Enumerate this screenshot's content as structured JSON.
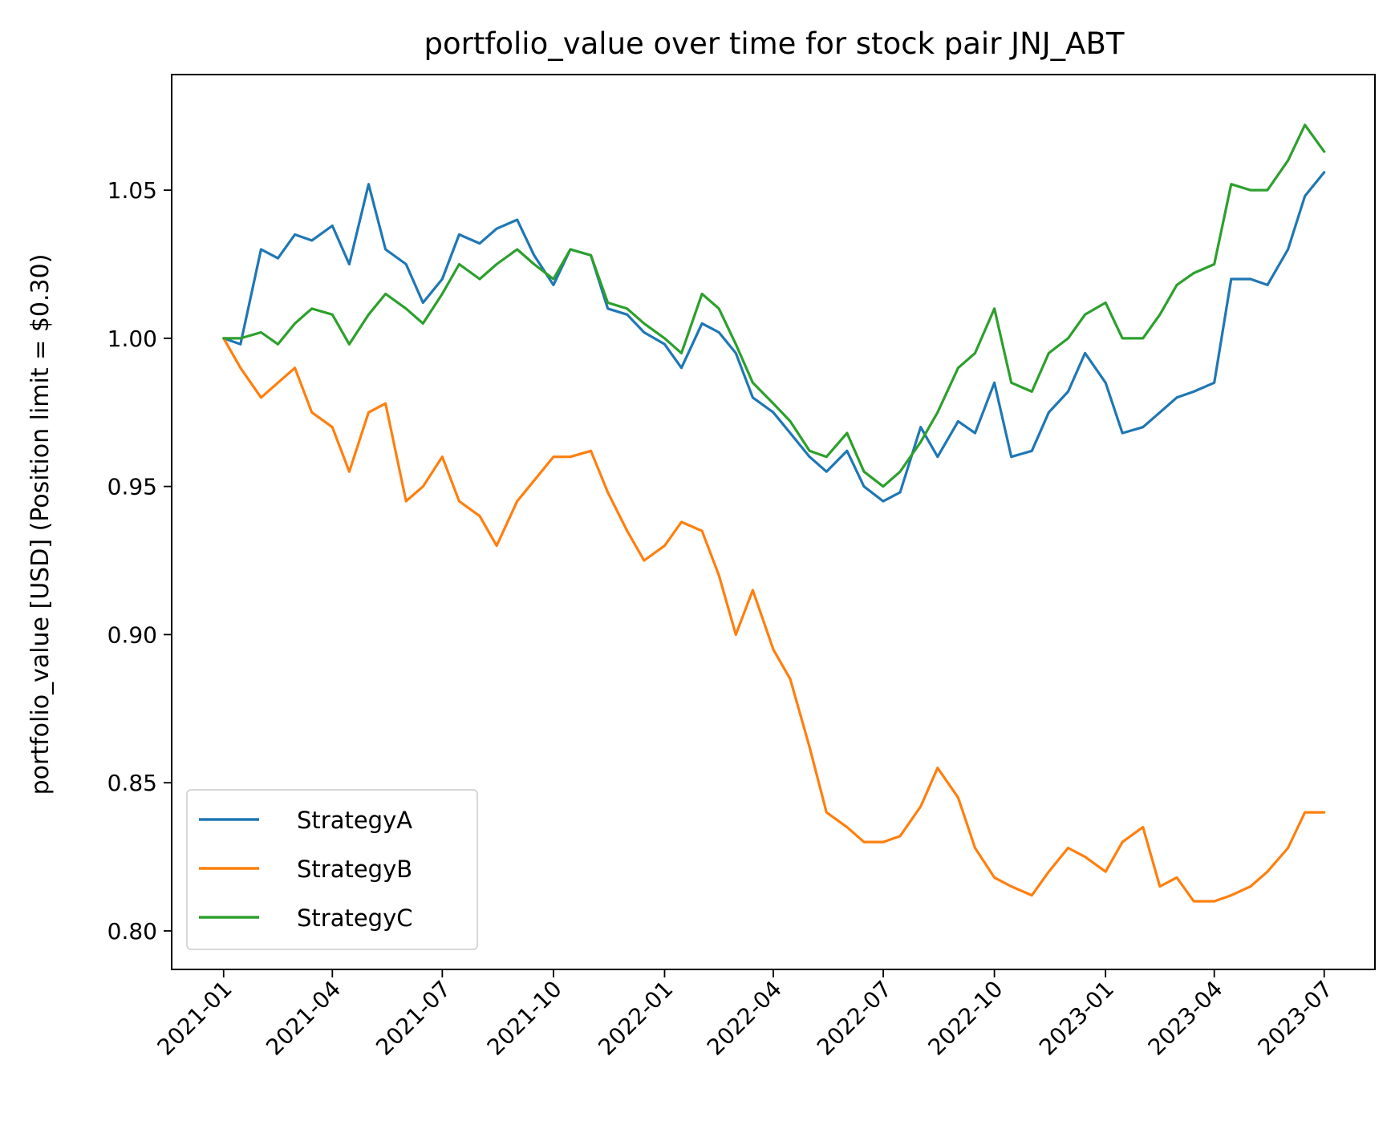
{
  "chart_data": {
    "type": "line",
    "title": "portfolio_value over time for stock pair JNJ_ABT",
    "xlabel": "",
    "ylabel": "portfolio_value [USD] (Position limit = $0.30)",
    "x_ticks": [
      "2021-01",
      "2021-04",
      "2021-07",
      "2021-10",
      "2022-01",
      "2022-04",
      "2022-07",
      "2022-10",
      "2023-01",
      "2023-04",
      "2023-07"
    ],
    "y_ticks": [
      "0.80",
      "0.85",
      "0.90",
      "0.95",
      "1.00",
      "1.05"
    ],
    "xlim": [
      "2020-11-19",
      "2023-08-12"
    ],
    "ylim": [
      0.787,
      1.089
    ],
    "grid": false,
    "legend_position": "lower-left",
    "x": [
      "2021-01-01",
      "2021-01-15",
      "2021-02-01",
      "2021-02-15",
      "2021-03-01",
      "2021-03-15",
      "2021-04-01",
      "2021-04-15",
      "2021-05-01",
      "2021-05-15",
      "2021-06-01",
      "2021-06-15",
      "2021-07-01",
      "2021-07-15",
      "2021-08-01",
      "2021-08-15",
      "2021-09-01",
      "2021-09-15",
      "2021-10-01",
      "2021-10-15",
      "2021-11-01",
      "2021-11-15",
      "2021-12-01",
      "2021-12-15",
      "2022-01-01",
      "2022-01-15",
      "2022-02-01",
      "2022-02-15",
      "2022-03-01",
      "2022-03-15",
      "2022-04-01",
      "2022-04-15",
      "2022-05-01",
      "2022-05-15",
      "2022-06-01",
      "2022-06-15",
      "2022-07-01",
      "2022-07-15",
      "2022-08-01",
      "2022-08-15",
      "2022-09-01",
      "2022-09-15",
      "2022-10-01",
      "2022-10-15",
      "2022-11-01",
      "2022-11-15",
      "2022-12-01",
      "2022-12-15",
      "2023-01-01",
      "2023-01-15",
      "2023-02-01",
      "2023-02-15",
      "2023-03-01",
      "2023-03-15",
      "2023-04-01",
      "2023-04-15",
      "2023-05-01",
      "2023-05-15",
      "2023-06-01",
      "2023-06-15",
      "2023-07-01"
    ],
    "series": [
      {
        "name": "StrategyA",
        "color": "#1f77b4",
        "values": [
          1.0,
          0.998,
          1.03,
          1.027,
          1.035,
          1.033,
          1.038,
          1.025,
          1.052,
          1.03,
          1.025,
          1.012,
          1.02,
          1.035,
          1.032,
          1.037,
          1.04,
          1.028,
          1.018,
          1.03,
          1.028,
          1.01,
          1.008,
          1.002,
          0.998,
          0.99,
          1.005,
          1.002,
          0.995,
          0.98,
          0.975,
          0.968,
          0.96,
          0.955,
          0.962,
          0.95,
          0.945,
          0.948,
          0.97,
          0.96,
          0.972,
          0.968,
          0.985,
          0.96,
          0.962,
          0.975,
          0.982,
          0.995,
          0.985,
          0.968,
          0.97,
          0.975,
          0.98,
          0.982,
          0.985,
          1.02,
          1.02,
          1.018,
          1.03,
          1.048,
          1.056
        ]
      },
      {
        "name": "StrategyB",
        "color": "#ff7f0e",
        "values": [
          1.0,
          0.99,
          0.98,
          0.985,
          0.99,
          0.975,
          0.97,
          0.955,
          0.975,
          0.978,
          0.945,
          0.95,
          0.96,
          0.945,
          0.94,
          0.93,
          0.945,
          0.952,
          0.96,
          0.96,
          0.962,
          0.948,
          0.935,
          0.925,
          0.93,
          0.938,
          0.935,
          0.92,
          0.9,
          0.915,
          0.895,
          0.885,
          0.862,
          0.84,
          0.835,
          0.83,
          0.83,
          0.832,
          0.842,
          0.855,
          0.845,
          0.828,
          0.818,
          0.815,
          0.812,
          0.82,
          0.828,
          0.825,
          0.82,
          0.83,
          0.835,
          0.815,
          0.818,
          0.81,
          0.81,
          0.812,
          0.815,
          0.82,
          0.828,
          0.84,
          0.84
        ]
      },
      {
        "name": "StrategyC",
        "color": "#2ca02c",
        "values": [
          1.0,
          1.0,
          1.002,
          0.998,
          1.005,
          1.01,
          1.008,
          0.998,
          1.008,
          1.015,
          1.01,
          1.005,
          1.015,
          1.025,
          1.02,
          1.025,
          1.03,
          1.025,
          1.02,
          1.03,
          1.028,
          1.012,
          1.01,
          1.005,
          1.0,
          0.995,
          1.015,
          1.01,
          0.998,
          0.985,
          0.978,
          0.972,
          0.962,
          0.96,
          0.968,
          0.955,
          0.95,
          0.955,
          0.965,
          0.975,
          0.99,
          0.995,
          1.01,
          0.985,
          0.982,
          0.995,
          1.0,
          1.008,
          1.012,
          1.0,
          1.0,
          1.008,
          1.018,
          1.022,
          1.025,
          1.052,
          1.05,
          1.05,
          1.06,
          1.072,
          1.063
        ]
      }
    ]
  }
}
